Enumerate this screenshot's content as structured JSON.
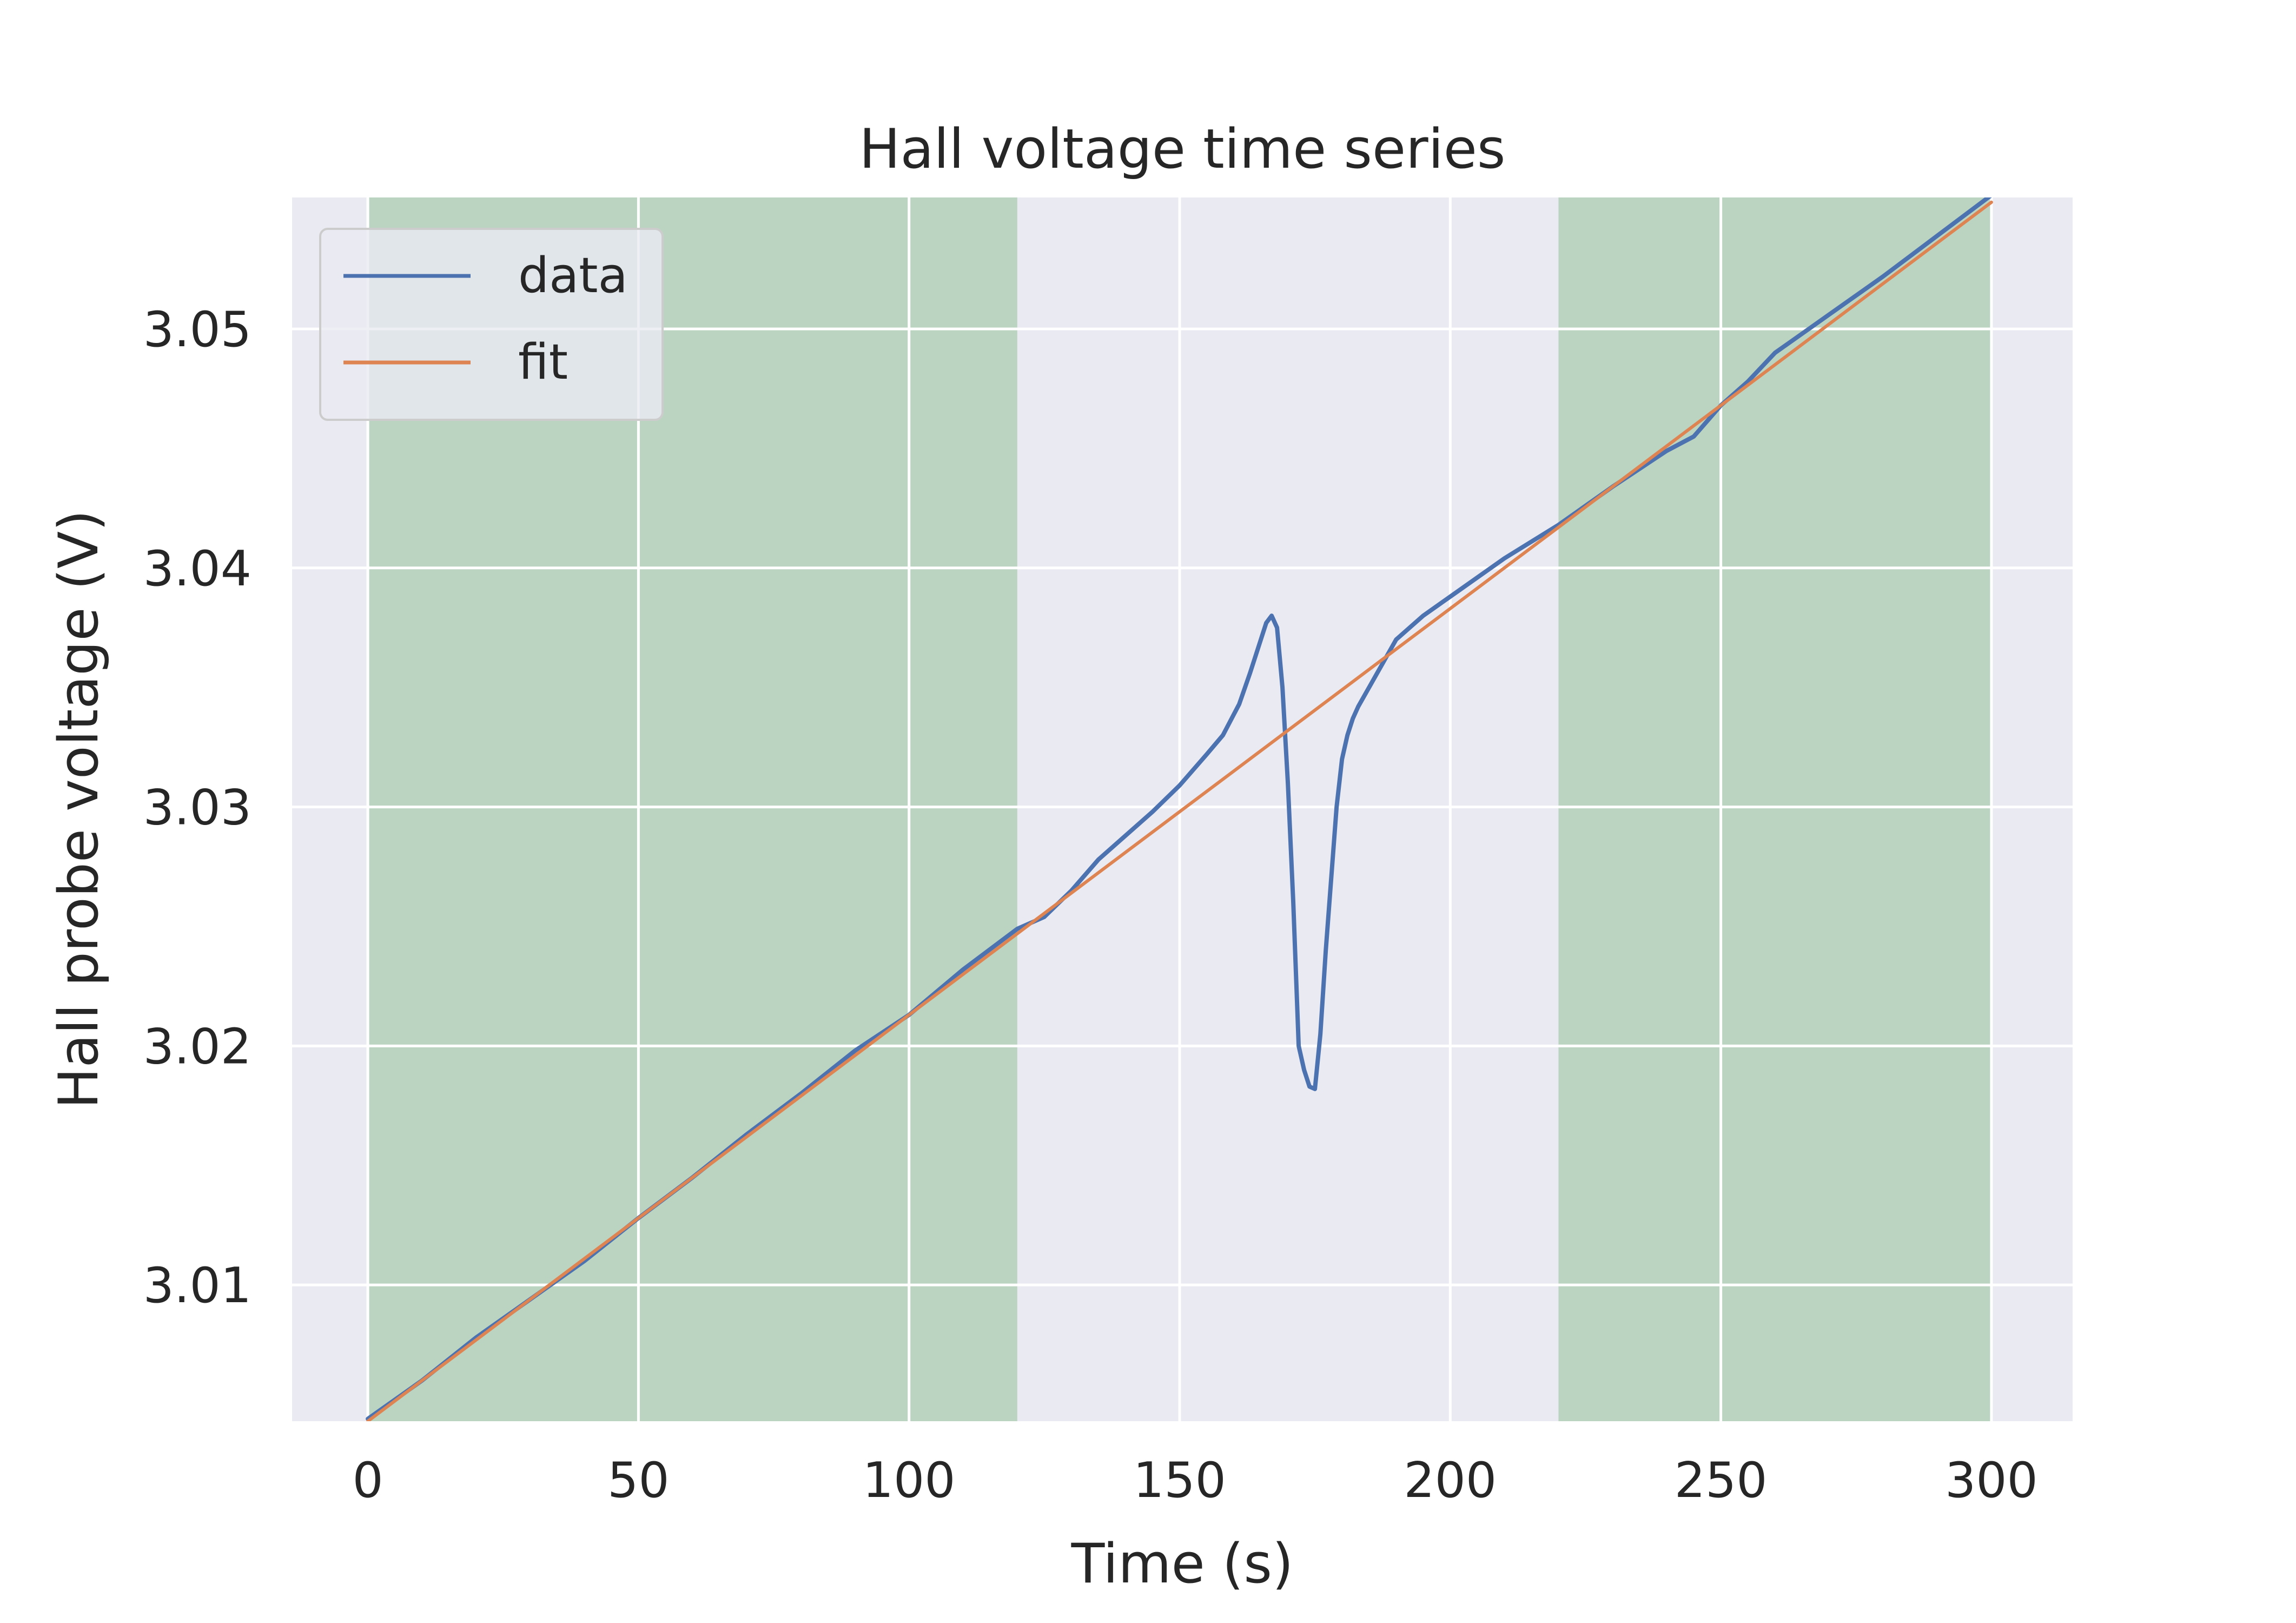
{
  "chart_data": {
    "type": "line",
    "title": "Hall voltage time series",
    "xlabel": "Time (s)",
    "ylabel": "Hall probe voltage (V)",
    "xlim": [
      -14,
      315
    ],
    "ylim": [
      3.0043,
      3.0555
    ],
    "x_ticks": [
      0,
      50,
      100,
      150,
      200,
      250,
      300
    ],
    "x_tick_labels": [
      "0",
      "50",
      "100",
      "150",
      "200",
      "250",
      "300"
    ],
    "y_ticks": [
      3.01,
      3.02,
      3.03,
      3.04,
      3.05
    ],
    "y_tick_labels": [
      "3.01",
      "3.02",
      "3.03",
      "3.04",
      "3.05"
    ],
    "grid": true,
    "legend_position": "top-left",
    "background_color": "#eaeaf2",
    "shaded_regions": [
      {
        "x_start": 0,
        "x_end": 120,
        "color": "#bbd4c2"
      },
      {
        "x_start": 220,
        "x_end": 300,
        "color": "#bbd4c2"
      }
    ],
    "series": [
      {
        "name": "data",
        "color": "#4c72b0",
        "x": [
          0,
          10,
          20,
          30,
          40,
          50,
          60,
          70,
          80,
          90,
          100,
          110,
          120,
          125,
          130,
          135,
          140,
          145,
          150,
          155,
          158,
          161,
          163,
          165,
          166,
          167,
          168,
          169,
          170,
          171,
          172,
          173,
          174,
          175,
          176,
          177,
          178,
          179,
          180,
          181,
          182,
          183,
          185,
          188,
          190,
          195,
          200,
          210,
          220,
          230,
          240,
          245,
          250,
          255,
          260,
          270,
          280,
          290,
          300
        ],
        "y": [
          3.0044,
          3.006,
          3.0078,
          3.0094,
          3.011,
          3.0128,
          3.0145,
          3.0163,
          3.018,
          3.0198,
          3.0213,
          3.0232,
          3.0249,
          3.0254,
          3.0265,
          3.0278,
          3.0288,
          3.0298,
          3.0309,
          3.0322,
          3.033,
          3.0343,
          3.0356,
          3.037,
          3.0377,
          3.038,
          3.0375,
          3.035,
          3.031,
          3.026,
          3.02,
          3.019,
          3.0183,
          3.0182,
          3.0205,
          3.024,
          3.027,
          3.03,
          3.032,
          3.033,
          3.0337,
          3.0342,
          3.035,
          3.0362,
          3.037,
          3.038,
          3.0388,
          3.0404,
          3.0418,
          3.0434,
          3.0449,
          3.0455,
          3.0468,
          3.0478,
          3.049,
          3.0506,
          3.0522,
          3.0539,
          3.0556
        ]
      },
      {
        "name": "fit",
        "color": "#dd8452",
        "x": [
          0,
          300
        ],
        "y": [
          3.0043,
          3.0553
        ]
      }
    ]
  }
}
